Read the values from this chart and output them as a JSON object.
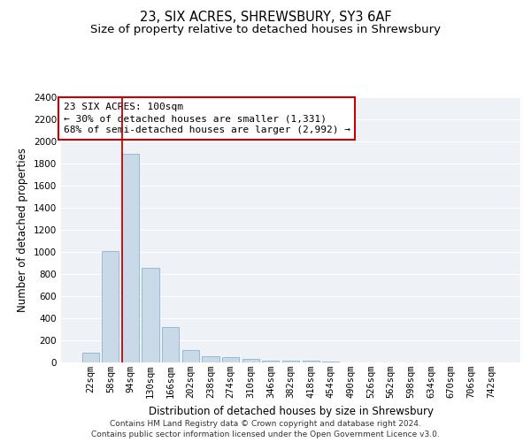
{
  "title": "23, SIX ACRES, SHREWSBURY, SY3 6AF",
  "subtitle": "Size of property relative to detached houses in Shrewsbury",
  "xlabel": "Distribution of detached houses by size in Shrewsbury",
  "ylabel": "Number of detached properties",
  "footer_line1": "Contains HM Land Registry data © Crown copyright and database right 2024.",
  "footer_line2": "Contains public sector information licensed under the Open Government Licence v3.0.",
  "property_label": "23 SIX ACRES: 100sqm",
  "annotation_line1": "← 30% of detached houses are smaller (1,331)",
  "annotation_line2": "68% of semi-detached houses are larger (2,992) →",
  "bar_color": "#c9d9e8",
  "bar_edge_color": "#8ab4cc",
  "highlight_color": "#cc0000",
  "categories": [
    "22sqm",
    "58sqm",
    "94sqm",
    "130sqm",
    "166sqm",
    "202sqm",
    "238sqm",
    "274sqm",
    "310sqm",
    "346sqm",
    "382sqm",
    "418sqm",
    "454sqm",
    "490sqm",
    "526sqm",
    "562sqm",
    "598sqm",
    "634sqm",
    "670sqm",
    "706sqm",
    "742sqm"
  ],
  "values": [
    90,
    1010,
    1890,
    860,
    320,
    115,
    55,
    45,
    30,
    15,
    20,
    20,
    8,
    0,
    0,
    0,
    0,
    0,
    0,
    0,
    0
  ],
  "property_bin_index": 2,
  "ylim": [
    0,
    2400
  ],
  "yticks": [
    0,
    200,
    400,
    600,
    800,
    1000,
    1200,
    1400,
    1600,
    1800,
    2000,
    2200,
    2400
  ],
  "bg_color": "#eef2f7",
  "grid_color": "#ffffff",
  "title_fontsize": 10.5,
  "subtitle_fontsize": 9.5,
  "axis_label_fontsize": 8.5,
  "tick_fontsize": 7.5,
  "annotation_fontsize": 8,
  "footer_fontsize": 6.5
}
